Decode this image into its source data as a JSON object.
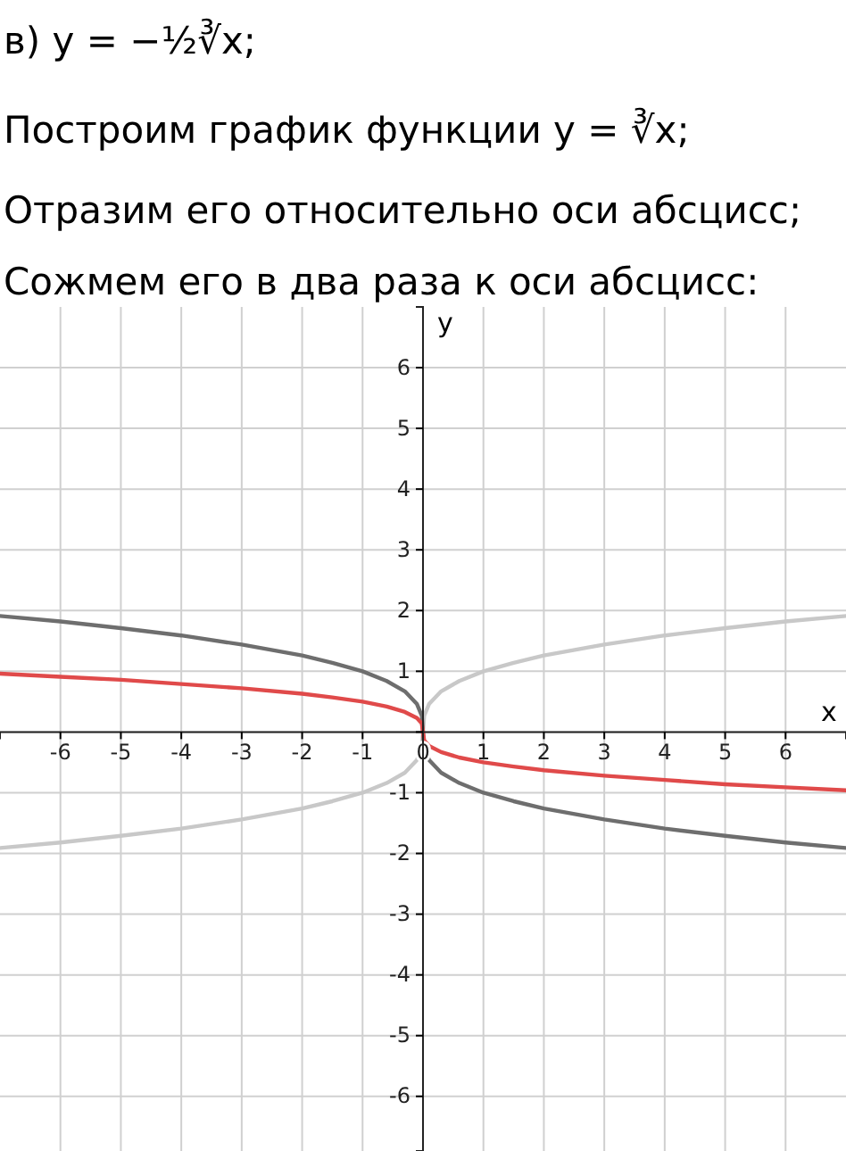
{
  "chart_data": {
    "type": "line",
    "title": "в) y = −½∛x;",
    "annotations": [
      "Построим график функции y = ∛x;",
      "Отразим его относительно оси абсцисс;",
      "Сожмем его в два раза к оси абсцисс:"
    ],
    "xlabel": "x",
    "ylabel": "y",
    "x": [
      -7,
      -6,
      -5,
      -4,
      -3,
      -2,
      -1.5,
      -1,
      -0.6,
      -0.3,
      -0.1,
      -0.02,
      0,
      0.02,
      0.1,
      0.3,
      0.6,
      1,
      1.5,
      2,
      3,
      4,
      5,
      6,
      7
    ],
    "series": [
      {
        "color": "#c8c8c8",
        "values": [
          -1.91,
          -1.82,
          -1.71,
          -1.59,
          -1.44,
          -1.26,
          -1.14,
          -1,
          -0.84,
          -0.67,
          -0.46,
          -0.27,
          0,
          0.27,
          0.46,
          0.67,
          0.84,
          1,
          1.14,
          1.26,
          1.44,
          1.59,
          1.71,
          1.82,
          1.91
        ]
      },
      {
        "color": "#6e6e6e",
        "values": [
          1.91,
          1.82,
          1.71,
          1.59,
          1.44,
          1.26,
          1.14,
          1,
          0.84,
          0.67,
          0.46,
          0.27,
          0,
          -0.27,
          -0.46,
          -0.67,
          -0.84,
          -1,
          -1.14,
          -1.26,
          -1.44,
          -1.59,
          -1.71,
          -1.82,
          -1.91
        ]
      },
      {
        "color": "#e04a4a",
        "values": [
          0.96,
          0.91,
          0.86,
          0.79,
          0.72,
          0.63,
          0.57,
          0.5,
          0.42,
          0.33,
          0.23,
          0.14,
          0,
          -0.14,
          -0.23,
          -0.33,
          -0.42,
          -0.5,
          -0.57,
          -0.63,
          -0.72,
          -0.79,
          -0.86,
          -0.91,
          -0.96
        ]
      }
    ],
    "xlim": [
      -7,
      7
    ],
    "ylim": [
      -6.9,
      7
    ],
    "xticks": [
      -6,
      -5,
      -4,
      -3,
      -2,
      -1,
      0,
      1,
      2,
      3,
      4,
      5,
      6
    ],
    "yticks": [
      -6,
      -5,
      -4,
      -3,
      -2,
      -1,
      {
        "value": 0,
        "label": null
      },
      1,
      2,
      3,
      4,
      5,
      6
    ],
    "grid": true
  }
}
